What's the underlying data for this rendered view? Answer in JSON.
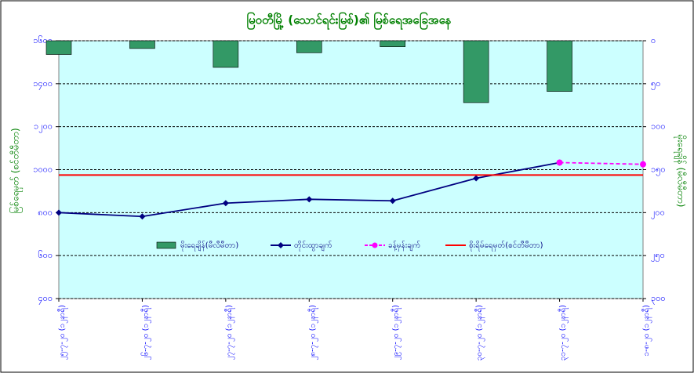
{
  "chart_data": {
    "type": "combo",
    "title": "မြဝတီမြို့ (သောင်ရင်းမြစ်)၏ မြစ်ရေအခြေအနေ",
    "y_label": "မြစ်ရေမှတ် (စင်တီမီတာ)",
    "y2_label": "မိုးရေချိန် (မီလီမီတာ)",
    "categories": [
      "၂၅-၇-၂၀ (၁၂နာရီ)",
      "၂၆-၇-၂၀ (၁၂နာရီ)",
      "၂၇-၇-၂၀ (၁၂နာရီ)",
      "၂၈-၇-၂၀ (၁၂နာရီ)",
      "၂၉-၇-၂၀ (၁၂နာရီ)",
      "၃၀-၇-၂၀ (၁၂နာရီ)",
      "၃၁-၇-၂၀ (၁၂နာရီ)",
      "၁-၈-၂၀ (၁၂နာရီ)"
    ],
    "ylim": [
      400,
      1600
    ],
    "yticks": [
      {
        "value": 400,
        "label": "၄၀၀"
      },
      {
        "value": 600,
        "label": "၆၀၀"
      },
      {
        "value": 800,
        "label": "၈၀၀"
      },
      {
        "value": 1000,
        "label": "၁၀၀၀"
      },
      {
        "value": 1200,
        "label": "၁၂၀၀"
      },
      {
        "value": 1400,
        "label": "၁၄၀၀"
      },
      {
        "value": 1600,
        "label": "၁၆၀၀"
      }
    ],
    "y2lim": [
      300,
      0
    ],
    "y2ticks": [
      {
        "value": 0,
        "label": "၀"
      },
      {
        "value": 50,
        "label": "၅၀"
      },
      {
        "value": 100,
        "label": "၁၀၀"
      },
      {
        "value": 150,
        "label": "၁၅၀"
      },
      {
        "value": 200,
        "label": "၂၀၀"
      },
      {
        "value": 250,
        "label": "၂၅၀"
      },
      {
        "value": 300,
        "label": "၃၀၀"
      }
    ],
    "grid": true,
    "background": "#ccffff",
    "series": [
      {
        "name": "မိုးရေချိန်(မီလီမီတာ)",
        "type": "bar",
        "axis": "y2",
        "color": "#339966",
        "values": [
          16,
          9,
          31,
          14,
          7,
          72,
          59,
          null
        ]
      },
      {
        "name": "တိုင်းထွာချက်",
        "type": "line",
        "color": "#000080",
        "values": [
          800,
          782,
          844,
          862,
          855,
          960,
          1033,
          null
        ]
      },
      {
        "name": "ခန့်မှန်းချက်",
        "type": "dashed",
        "color": "#ff00ff",
        "values": [
          null,
          null,
          null,
          null,
          null,
          null,
          1033,
          1025
        ]
      },
      {
        "name": "စိုးရိမ်ရေမှတ်(စင်တီမီတာ)",
        "type": "level",
        "color": "#ff0000",
        "value": 975
      }
    ]
  }
}
